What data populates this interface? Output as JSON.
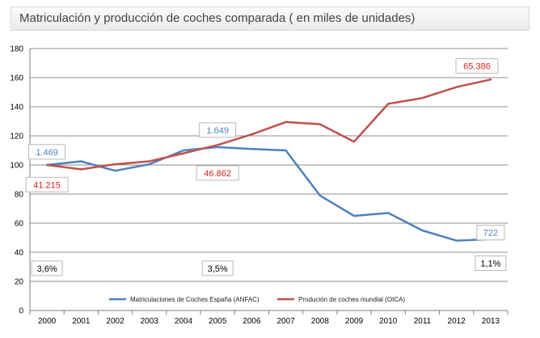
{
  "title": "Matriculación y producción de coches comparada ( en miles de unidades)",
  "chart_data": {
    "type": "line",
    "categories": [
      "2000",
      "2001",
      "2002",
      "2003",
      "2004",
      "2005",
      "2006",
      "2007",
      "2008",
      "2009",
      "2010",
      "2011",
      "2012",
      "2013"
    ],
    "ylim": [
      0,
      180
    ],
    "yticks": [
      0,
      20,
      40,
      60,
      80,
      100,
      120,
      140,
      160,
      180
    ],
    "grid": true,
    "legend_position": "bottom",
    "series": [
      {
        "name": "Matriculaciones de Coches España (ANFAC)",
        "color": "#4f81bd",
        "values": [
          100,
          102.5,
          96,
          100.5,
          110,
          112.3,
          111,
          110,
          79,
          65,
          67,
          55,
          48,
          49
        ]
      },
      {
        "name": "Produción de coches mundial (OICA)",
        "color": "#c0504d",
        "values": [
          100,
          97,
          100.5,
          102.5,
          108,
          113.7,
          121,
          129.5,
          128,
          116,
          142,
          146,
          153.5,
          158.7
        ]
      }
    ],
    "annotations": [
      {
        "text": "1.469",
        "color": "#4f81bd",
        "x_index": 0,
        "y": 109
      },
      {
        "text": "41.215",
        "color": "#e0201b",
        "x_index": 0,
        "y": 86.5
      },
      {
        "text": "1.649",
        "color": "#4f81bd",
        "x_index": 5,
        "y": 124
      },
      {
        "text": "46.862",
        "color": "#e0201b",
        "x_index": 5,
        "y": 94.5
      },
      {
        "text": "65.386",
        "color": "#e0201b",
        "x_index": 12.6,
        "y": 168
      },
      {
        "text": "722",
        "color": "#4f81bd",
        "x_index": 13,
        "y": 53.5
      },
      {
        "text": "3,6%",
        "color": "#000000",
        "x_index": 0,
        "y": 29
      },
      {
        "text": "3,5%",
        "color": "#000000",
        "x_index": 5,
        "y": 29
      },
      {
        "text": "1,1%",
        "color": "#000000",
        "x_index": 13,
        "y": 32.5
      }
    ]
  }
}
